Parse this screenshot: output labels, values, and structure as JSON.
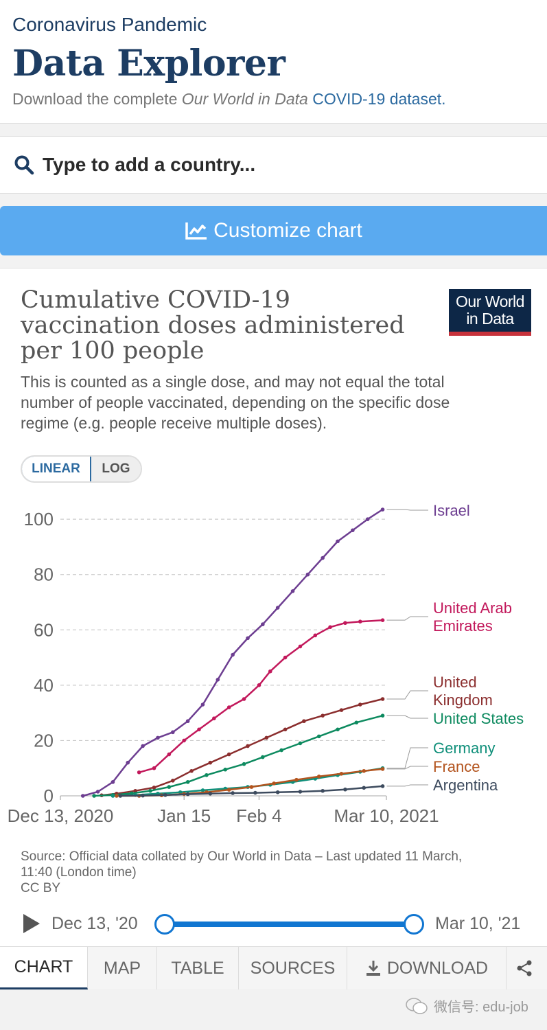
{
  "header": {
    "eyebrow": "Coronavirus Pandemic",
    "title": "Data Explorer",
    "subtitle_prefix": "Download the complete ",
    "subtitle_em": "Our World in Data",
    "subtitle_link": "COVID-19 dataset."
  },
  "search": {
    "placeholder": "Type to add a country..."
  },
  "customize": {
    "label": "Customize chart"
  },
  "chart": {
    "title": "Cumulative COVID-19 vaccination doses administered per 100 people",
    "subtitle": "This is counted as a single dose, and may not equal the total number of people vaccinated, depending on the specific dose regime (e.g. people receive multiple doses).",
    "logo_line1": "Our World",
    "logo_line2": "in Data",
    "scale_linear": "LINEAR",
    "scale_log": "LOG",
    "source": "Source: Official data collated by Our World in Data – Last updated 11 March, 11:40 (London time)",
    "license": "CC BY"
  },
  "chart_data": {
    "type": "line",
    "title": "Cumulative COVID-19 vaccination doses administered per 100 people",
    "xlabel": "",
    "ylabel": "",
    "x_ticks": [
      {
        "day": 0,
        "label": "Dec 13, 2020"
      },
      {
        "day": 33,
        "label": "Jan 15"
      },
      {
        "day": 53,
        "label": "Feb 4"
      },
      {
        "day": 87,
        "label": "Mar 10, 2021"
      }
    ],
    "y_ticks": [
      0,
      20,
      40,
      60,
      80,
      100
    ],
    "xlim": [
      0,
      87
    ],
    "ylim": [
      0,
      105
    ],
    "series": [
      {
        "name": "Israel",
        "color": "#6d3e91",
        "label_lines": [
          "Israel"
        ],
        "points": [
          [
            6,
            0
          ],
          [
            10,
            1.5
          ],
          [
            14,
            5
          ],
          [
            18,
            12
          ],
          [
            22,
            18
          ],
          [
            26,
            21
          ],
          [
            30,
            23
          ],
          [
            34,
            27
          ],
          [
            38,
            33
          ],
          [
            42,
            42
          ],
          [
            46,
            51
          ],
          [
            50,
            57
          ],
          [
            54,
            62
          ],
          [
            58,
            68
          ],
          [
            62,
            74
          ],
          [
            66,
            80
          ],
          [
            70,
            86
          ],
          [
            74,
            92
          ],
          [
            78,
            96
          ],
          [
            82,
            100
          ],
          [
            86,
            103.5
          ]
        ]
      },
      {
        "name": "United Arab Emirates",
        "color": "#c2185b",
        "label_lines": [
          "United Arab",
          "Emirates"
        ],
        "points": [
          [
            21,
            8.5
          ],
          [
            25,
            10
          ],
          [
            29,
            15
          ],
          [
            33,
            20
          ],
          [
            37,
            24
          ],
          [
            41,
            28
          ],
          [
            45,
            32
          ],
          [
            49,
            35
          ],
          [
            53,
            40
          ],
          [
            56,
            45
          ],
          [
            60,
            50
          ],
          [
            64,
            54
          ],
          [
            68,
            58
          ],
          [
            72,
            61
          ],
          [
            76,
            62.5
          ],
          [
            80,
            63
          ],
          [
            86,
            63.5
          ]
        ]
      },
      {
        "name": "United Kingdom",
        "color": "#8b2e2e",
        "label_lines": [
          "United",
          "Kingdom"
        ],
        "points": [
          [
            11,
            0.2
          ],
          [
            15,
            0.8
          ],
          [
            20,
            1.8
          ],
          [
            25,
            3
          ],
          [
            30,
            5.5
          ],
          [
            35,
            9
          ],
          [
            40,
            12
          ],
          [
            45,
            15
          ],
          [
            50,
            18
          ],
          [
            55,
            21
          ],
          [
            60,
            24
          ],
          [
            65,
            27
          ],
          [
            70,
            29
          ],
          [
            75,
            31
          ],
          [
            80,
            33
          ],
          [
            86,
            35
          ]
        ]
      },
      {
        "name": "United States",
        "color": "#0d8a5f",
        "label_lines": [
          "United States"
        ],
        "points": [
          [
            9,
            0
          ],
          [
            14,
            0.3
          ],
          [
            19,
            0.9
          ],
          [
            24,
            1.8
          ],
          [
            29,
            3.2
          ],
          [
            34,
            5
          ],
          [
            39,
            7.5
          ],
          [
            44,
            9.5
          ],
          [
            49,
            11.5
          ],
          [
            54,
            14
          ],
          [
            59,
            16.5
          ],
          [
            64,
            19
          ],
          [
            69,
            21.5
          ],
          [
            74,
            24
          ],
          [
            79,
            26.5
          ],
          [
            86,
            29
          ]
        ]
      },
      {
        "name": "Germany",
        "color": "#0f8f7a",
        "label_lines": [
          "Germany"
        ],
        "points": [
          [
            14,
            0
          ],
          [
            20,
            0.3
          ],
          [
            26,
            0.8
          ],
          [
            32,
            1.3
          ],
          [
            38,
            2
          ],
          [
            44,
            2.6
          ],
          [
            50,
            3.2
          ],
          [
            56,
            4
          ],
          [
            62,
            5
          ],
          [
            68,
            6.2
          ],
          [
            74,
            7.5
          ],
          [
            80,
            8.7
          ],
          [
            86,
            10
          ]
        ]
      },
      {
        "name": "France",
        "color": "#b3541e",
        "label_lines": [
          "France"
        ],
        "points": [
          [
            15,
            0
          ],
          [
            21,
            0
          ],
          [
            27,
            0.2
          ],
          [
            33,
            0.7
          ],
          [
            39,
            1.3
          ],
          [
            45,
            2.2
          ],
          [
            51,
            3.2
          ],
          [
            57,
            4.5
          ],
          [
            63,
            5.8
          ],
          [
            69,
            7
          ],
          [
            75,
            8
          ],
          [
            81,
            9
          ],
          [
            86,
            9.7
          ]
        ]
      },
      {
        "name": "Argentina",
        "color": "#3d4b5e",
        "label_lines": [
          "Argentina"
        ],
        "points": [
          [
            16,
            0
          ],
          [
            22,
            0.1
          ],
          [
            28,
            0.3
          ],
          [
            34,
            0.6
          ],
          [
            40,
            0.8
          ],
          [
            46,
            1
          ],
          [
            52,
            1.1
          ],
          [
            58,
            1.3
          ],
          [
            64,
            1.5
          ],
          [
            70,
            1.8
          ],
          [
            76,
            2.3
          ],
          [
            81,
            2.9
          ],
          [
            86,
            3.5
          ]
        ]
      }
    ]
  },
  "timeline": {
    "start": "Dec 13, '20",
    "end": "Mar 10, '21"
  },
  "tabs": [
    {
      "label": "CHART"
    },
    {
      "label": "MAP"
    },
    {
      "label": "TABLE"
    },
    {
      "label": "SOURCES"
    },
    {
      "label": "DOWNLOAD"
    }
  ],
  "watermark": {
    "text": "微信号: edu-job"
  }
}
